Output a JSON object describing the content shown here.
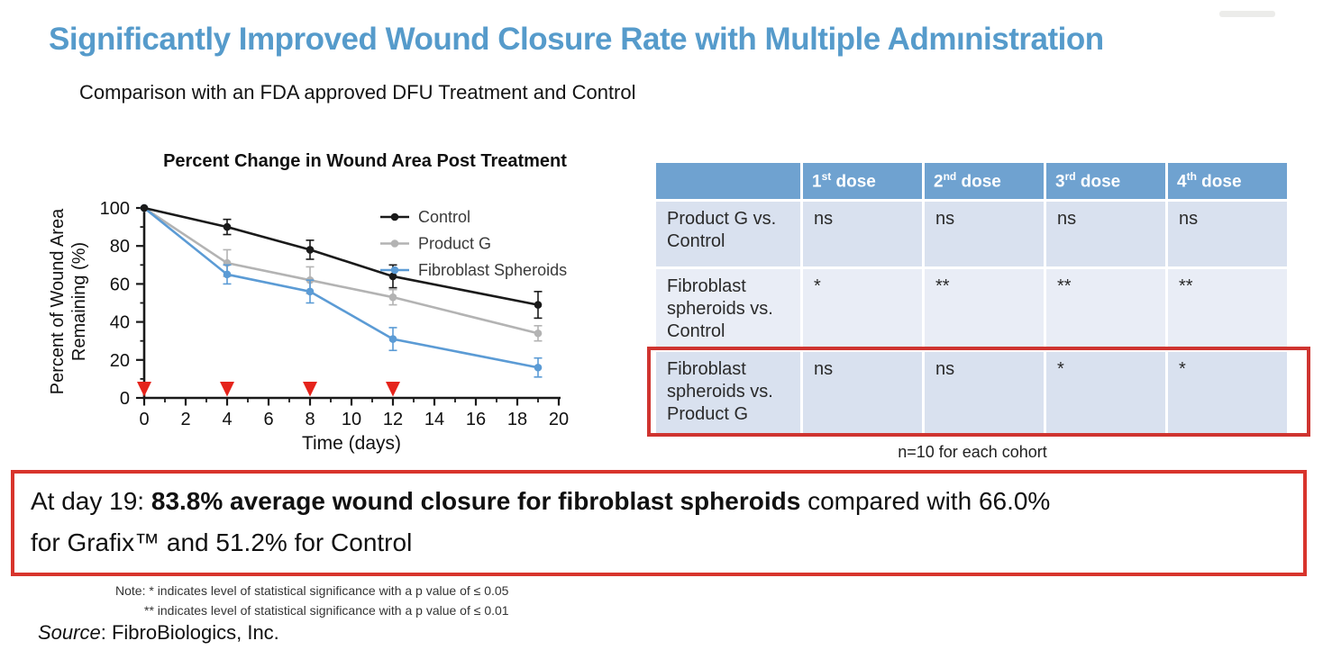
{
  "page": {
    "title": "Significantly Improved Wound Closure Rate with Multiple Admınistration",
    "subtitle": "Comparison with an FDA approved DFU Treatment and Control",
    "accent_blue": "#569bcb"
  },
  "chart_data": {
    "type": "line",
    "title": "Percent Change in Wound Area Post Treatment",
    "xlabel": "Time (days)",
    "ylabel_lines": [
      "Percent of Wound Area",
      "Remaining (%)"
    ],
    "xlim": [
      0,
      20
    ],
    "ylim": [
      0,
      100
    ],
    "xticks": [
      0,
      2,
      4,
      6,
      8,
      10,
      12,
      14,
      16,
      18,
      20
    ],
    "xticks_minor": [
      1,
      3,
      5,
      7,
      9,
      11,
      13,
      15,
      17,
      19
    ],
    "yticks": [
      0,
      20,
      40,
      60,
      80,
      100
    ],
    "yticks_minor": [
      10,
      30,
      50,
      70,
      90
    ],
    "x": [
      0,
      4,
      8,
      12,
      19
    ],
    "series": [
      {
        "name": "Control",
        "color": "#1a1a1a",
        "values": [
          100,
          90,
          78,
          64,
          49
        ],
        "errors": [
          0,
          4,
          5,
          6,
          7
        ]
      },
      {
        "name": "Product G",
        "color": "#b3b3b3",
        "values": [
          100,
          71,
          62,
          53,
          34
        ],
        "errors": [
          0,
          7,
          7,
          4,
          4
        ]
      },
      {
        "name": "Fibroblast Spheroids",
        "color": "#5b9bd5",
        "values": [
          100,
          65,
          56,
          31,
          16
        ],
        "errors": [
          0,
          5,
          6,
          6,
          5
        ]
      }
    ],
    "dose_arrow_days": [
      0,
      4,
      8,
      12
    ],
    "dose_arrow_color": "#e5231b",
    "legend_position": "upper-right",
    "grid": false
  },
  "table": {
    "headers": [
      {
        "n": "1",
        "o": "st",
        "rest": " dose"
      },
      {
        "n": "2",
        "o": "nd",
        "rest": " dose"
      },
      {
        "n": "3",
        "o": "rd",
        "rest": " dose"
      },
      {
        "n": "4",
        "o": "th",
        "rest": " dose"
      }
    ],
    "rows": [
      {
        "label": "Product G vs. Control",
        "cells": [
          "ns",
          "ns",
          "ns",
          "ns"
        ],
        "highlighted": false
      },
      {
        "label": "Fibroblast spheroids vs. Control",
        "cells": [
          "*",
          "**",
          "**",
          "**"
        ],
        "highlighted": false
      },
      {
        "label": "Fibroblast spheroids vs. Product G",
        "cells": [
          "ns",
          "ns",
          "*",
          "*"
        ],
        "highlighted": true
      }
    ],
    "header_color": "#6fa2d0",
    "row_color_a": "#d9e1ef",
    "row_color_b": "#e9edf6",
    "highlight_border_color": "#cf3430",
    "footnote": "n=10 for each cohort"
  },
  "callout": {
    "prefix": "At day 19: ",
    "bold": "83.8% average wound closure for fibroblast spheroids",
    "suffix_line1": " compared with 66.0%",
    "line2": "for Grafix™ and 51.2% for Control",
    "border_color": "#d8342c"
  },
  "notes": {
    "line1": "Note: * indicates level of statistical significance with a p value of ≤ 0.05",
    "line2": "** indicates level of statistical significance with a p value of ≤ 0.01"
  },
  "source": {
    "label": "Source",
    "rest": ": FibroBiologics, Inc."
  }
}
